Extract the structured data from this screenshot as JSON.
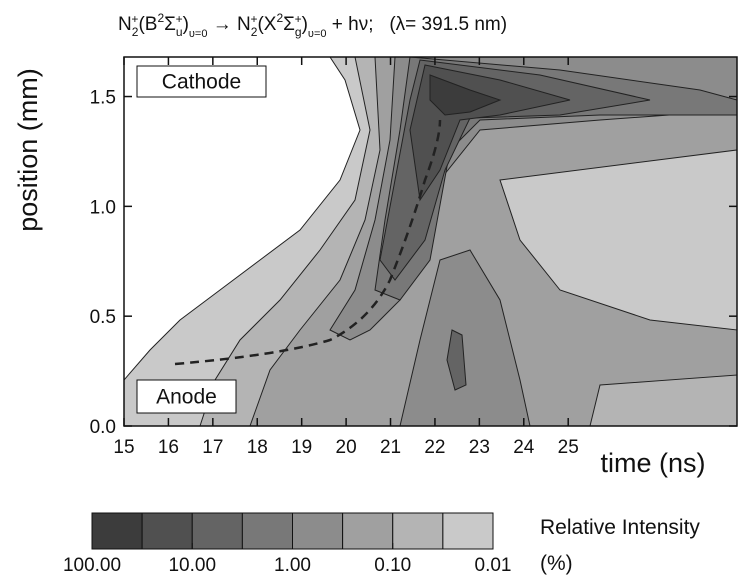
{
  "chart_data": {
    "type": "contour",
    "title": [
      "N",
      "2",
      "+",
      "(B",
      "2",
      "Σ",
      "u",
      "+",
      ")",
      "υ=0",
      " → N",
      "2",
      "+",
      "(X",
      "2",
      "Σ",
      "g",
      "+",
      ")",
      "υ=0",
      " + hν;   (λ= 391.5 nm)"
    ],
    "xlabel": "time (ns)",
    "ylabel": "position (mm)",
    "xlim": [
      15,
      28.8
    ],
    "xticks": [
      15,
      16,
      17,
      18,
      19,
      20,
      21,
      22,
      23,
      24,
      25
    ],
    "ylim": [
      0,
      1.68
    ],
    "yticks": [
      {
        "value": 0,
        "label": "0.0"
      },
      0.5,
      {
        "value": 1,
        "label": "1.0"
      },
      1.5
    ],
    "annotations": [
      "Cathode",
      "Anode"
    ],
    "colorbar": {
      "log": true,
      "lim": [
        100,
        0.01
      ],
      "colors": [
        "#3c3c3c",
        "#505050",
        "#646464",
        "#787878",
        "#8c8c8c",
        "#a0a0a0",
        "#b4b4b4",
        "#c9c9c9"
      ],
      "ticks": [
        {
          "value": 100,
          "label": "100.00"
        },
        {
          "value": 10,
          "label": "10.00"
        },
        {
          "value": 1,
          "label": "1.00"
        },
        {
          "value": 0.1,
          "label": "0.10"
        },
        0.01
      ],
      "label": [
        "Relative Intensity",
        "(%)"
      ]
    }
  }
}
